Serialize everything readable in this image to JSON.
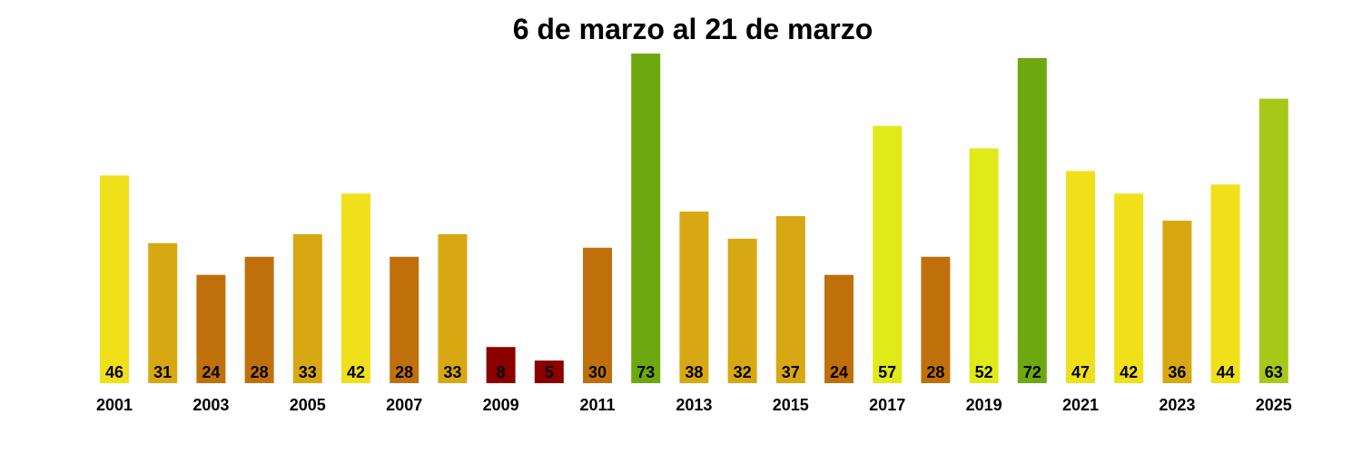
{
  "chart_data": {
    "type": "bar",
    "title": "6 de marzo al 21 de marzo",
    "categories": [
      "2001",
      "2002",
      "2003",
      "2004",
      "2005",
      "2006",
      "2007",
      "2008",
      "2009",
      "2010",
      "2011",
      "2012",
      "2013",
      "2014",
      "2015",
      "2016",
      "2017",
      "2018",
      "2019",
      "2020",
      "2021",
      "2022",
      "2023",
      "2024",
      "2025"
    ],
    "values": [
      46,
      31,
      24,
      28,
      33,
      42,
      28,
      33,
      8,
      5,
      30,
      73,
      38,
      32,
      37,
      24,
      57,
      28,
      52,
      72,
      47,
      42,
      36,
      44,
      63
    ],
    "colors": [
      "#f0e01a",
      "#d7a812",
      "#c0700a",
      "#c0700a",
      "#d7a812",
      "#f0e01a",
      "#c0700a",
      "#d7a812",
      "#8b0000",
      "#8b0000",
      "#c0700a",
      "#6ea810",
      "#d7a812",
      "#d7a812",
      "#d7a812",
      "#c0700a",
      "#e0ea18",
      "#c0700a",
      "#e0ea18",
      "#6ea810",
      "#f0e01a",
      "#f0e01a",
      "#d7a812",
      "#f0e01a",
      "#a8c81a"
    ],
    "tick_labels": [
      "2001",
      "2003",
      "2005",
      "2007",
      "2009",
      "2011",
      "2013",
      "2015",
      "2017",
      "2019",
      "2021",
      "2023",
      "2025"
    ],
    "ylim": [
      0,
      73
    ],
    "grid": false,
    "legend": "none"
  }
}
